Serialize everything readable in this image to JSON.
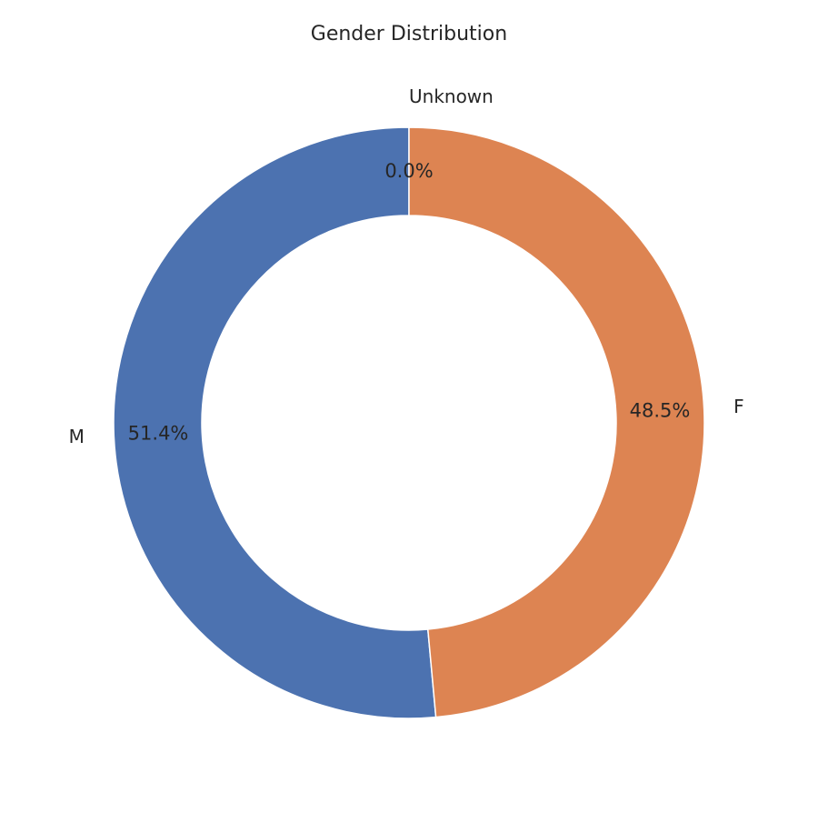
{
  "chart_data": {
    "type": "pie",
    "variant": "donut",
    "title": "Gender Distribution",
    "labels": [
      "M",
      "F",
      "Unknown"
    ],
    "values": [
      51.4,
      48.5,
      0.0
    ],
    "percent_labels": [
      "51.4%",
      "48.5%",
      "0.0%"
    ],
    "colors": [
      "#4C72B0",
      "#DD8452",
      "#55A868"
    ],
    "start_angle_deg": 90,
    "direction": "counterclockwise",
    "legend": "none"
  }
}
